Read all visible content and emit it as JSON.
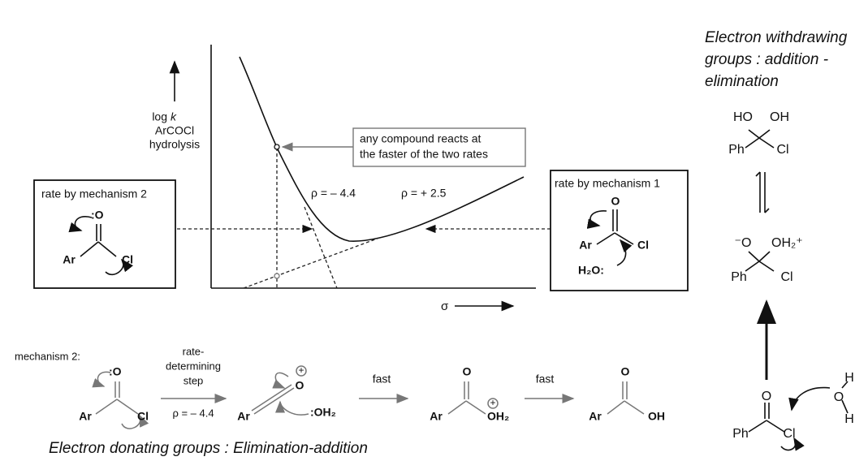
{
  "graph": {
    "y_axis_label": {
      "log": "log",
      "k": "k",
      "line2": "ArCOCl",
      "line3": "hydrolysis"
    },
    "callout": [
      "any compound reacts at",
      "the faster of the two rates"
    ],
    "rho_left": "ρ = – 4.4",
    "rho_right": "ρ = + 2.5",
    "x_axis_label": "σ"
  },
  "mechanism_2_box": {
    "title": "rate by mechanism 2",
    "atoms": [
      ":O",
      "Ar",
      "Cl"
    ]
  },
  "mechanism_1_box": {
    "title": "rate by mechanism 1",
    "atoms": [
      "O",
      "Ar",
      "Cl",
      "H₂O:"
    ]
  },
  "mechanism_2_scheme": {
    "label": "mechanism 2:",
    "start_atoms": [
      ":O",
      "Ar",
      "Cl"
    ],
    "arrow_1_label": [
      "rate-",
      "determining",
      "step"
    ],
    "arrow_1_rho": "ρ = – 4.4",
    "acylium_atoms": [
      "O",
      "Ar",
      ":OH₂"
    ],
    "acylium_charge": "+",
    "arrow_2_label": "fast",
    "adduct_atoms": [
      "O",
      "Ar",
      "OH₂"
    ],
    "adduct_charge": "+",
    "arrow_3_label": "fast",
    "acid_atoms": [
      "O",
      "Ar",
      "OH"
    ]
  },
  "caption": "Electron donating groups : Elimination-addition",
  "right_column": {
    "heading": [
      "Electron withdrawing",
      "groups : addition -",
      "elimination"
    ],
    "hydrate_atoms": [
      "HO",
      "OH",
      "Ph",
      "Cl"
    ],
    "protonated_atoms": [
      "⁻O",
      "OH₂⁺",
      "Ph",
      "Cl"
    ],
    "acyl_chloride_atoms": [
      "O",
      "Ph",
      "Cl"
    ],
    "water_atoms": [
      "H",
      "O",
      "H"
    ]
  }
}
